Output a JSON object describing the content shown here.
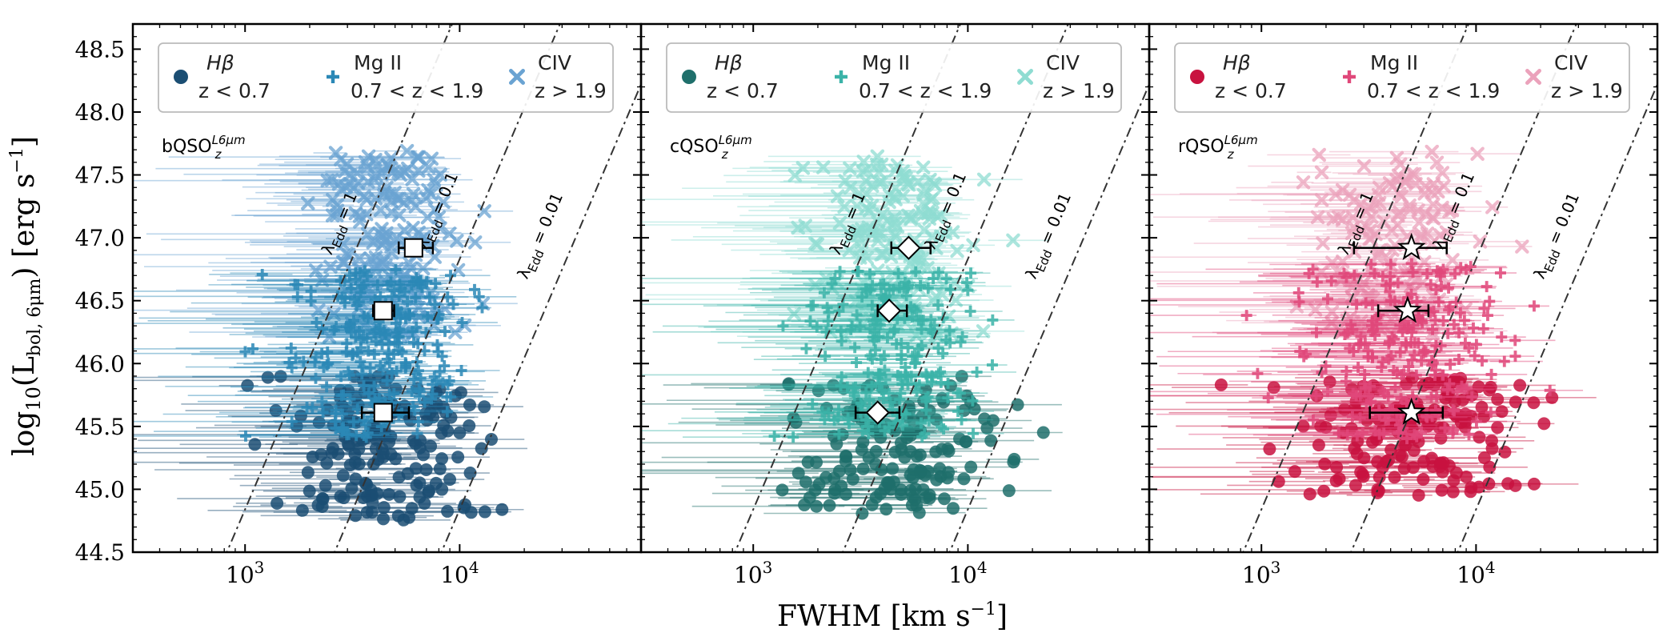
{
  "chart_data": [
    {
      "type": "scatter",
      "panel_label": "bQSO",
      "panel_label_sub": "z",
      "panel_label_sup": "L6μm",
      "colors": {
        "Hbeta": "#1b4e73",
        "MgII": "#2b88b6",
        "CIV": "#6aa3d2",
        "median": "#ffffff"
      },
      "median_marker": "square",
      "legend": [
        {
          "name": "Hβ",
          "range": "z < 0.7",
          "marker": "circle"
        },
        {
          "name": "Mg II",
          "range": "0.7 < z < 1.9",
          "marker": "plus"
        },
        {
          "name": "CIV",
          "range": "z > 1.9",
          "marker": "x"
        }
      ],
      "medians": [
        {
          "fwhm": 4400,
          "lbol": 45.61,
          "err_lo": 900,
          "err_hi": 1400
        },
        {
          "fwhm": 4400,
          "lbol": 46.42,
          "err_lo": 450,
          "err_hi": 550
        },
        {
          "fwhm": 6100,
          "lbol": 46.92,
          "err_lo": 900,
          "err_hi": 1400
        }
      ],
      "clouds": [
        {
          "group": "Hbeta",
          "fwhm_center": 4300,
          "fwhm_spread": 0.23,
          "l_min": 44.75,
          "l_max": 45.9,
          "count": 170
        },
        {
          "group": "MgII",
          "fwhm_center": 4300,
          "fwhm_spread": 0.2,
          "l_min": 45.4,
          "l_max": 46.75,
          "count": 240
        },
        {
          "group": "CIV",
          "fwhm_center": 4700,
          "fwhm_spread": 0.16,
          "l_min": 46.2,
          "l_max": 47.7,
          "count": 200
        }
      ]
    },
    {
      "type": "scatter",
      "panel_label": "cQSO",
      "panel_label_sub": "z",
      "panel_label_sup": "L6μm",
      "colors": {
        "Hbeta": "#1f6f6b",
        "MgII": "#3bb3a8",
        "CIV": "#8fdcd2",
        "median": "#ffffff"
      },
      "median_marker": "diamond",
      "legend": [
        {
          "name": "Hβ",
          "range": "z < 0.7",
          "marker": "circle"
        },
        {
          "name": "Mg II",
          "range": "0.7 < z < 1.9",
          "marker": "plus"
        },
        {
          "name": "CIV",
          "range": "z > 1.9",
          "marker": "x"
        }
      ],
      "medians": [
        {
          "fwhm": 3800,
          "lbol": 45.61,
          "err_lo": 800,
          "err_hi": 1000
        },
        {
          "fwhm": 4300,
          "lbol": 46.42,
          "err_lo": 500,
          "err_hi": 900
        },
        {
          "fwhm": 5300,
          "lbol": 46.92,
          "err_lo": 900,
          "err_hi": 1400
        }
      ],
      "clouds": [
        {
          "group": "Hbeta",
          "fwhm_center": 4300,
          "fwhm_spread": 0.25,
          "l_min": 44.8,
          "l_max": 45.9,
          "count": 150
        },
        {
          "group": "MgII",
          "fwhm_center": 4200,
          "fwhm_spread": 0.2,
          "l_min": 45.4,
          "l_max": 46.75,
          "count": 220
        },
        {
          "group": "CIV",
          "fwhm_center": 4500,
          "fwhm_spread": 0.17,
          "l_min": 46.2,
          "l_max": 47.65,
          "count": 190
        }
      ]
    },
    {
      "type": "scatter",
      "panel_label": "rQSO",
      "panel_label_sub": "z",
      "panel_label_sup": "L6μm",
      "colors": {
        "Hbeta": "#c8123f",
        "MgII": "#e0487a",
        "CIV": "#eba2bb",
        "median": "#ffffff"
      },
      "median_marker": "star",
      "legend": [
        {
          "name": "Hβ",
          "range": "z < 0.7",
          "marker": "circle"
        },
        {
          "name": "Mg II",
          "range": "0.7 < z < 1.9",
          "marker": "plus"
        },
        {
          "name": "CIV",
          "range": "z > 1.9",
          "marker": "x"
        }
      ],
      "medians": [
        {
          "fwhm": 5000,
          "lbol": 45.61,
          "err_lo": 1800,
          "err_hi": 2000
        },
        {
          "fwhm": 4800,
          "lbol": 46.42,
          "err_lo": 1300,
          "err_hi": 1200
        },
        {
          "fwhm": 5000,
          "lbol": 46.92,
          "err_lo": 2300,
          "err_hi": 2300
        }
      ],
      "clouds": [
        {
          "group": "Hbeta",
          "fwhm_center": 5000,
          "fwhm_spread": 0.25,
          "l_min": 44.95,
          "l_max": 45.9,
          "count": 170
        },
        {
          "group": "MgII",
          "fwhm_center": 4500,
          "fwhm_spread": 0.22,
          "l_min": 45.4,
          "l_max": 46.8,
          "count": 230
        },
        {
          "group": "CIV",
          "fwhm_center": 4200,
          "fwhm_spread": 0.22,
          "l_min": 46.2,
          "l_max": 47.7,
          "count": 160
        }
      ]
    }
  ],
  "axes": {
    "xlabel": "FWHM [km s",
    "xlabel_sup": "−1",
    "xlabel_end": "]",
    "ylabel_main": "log",
    "ylabel_sub10": "10",
    "ylabel_paren": "(L",
    "ylabel_sub": "bol, 6μm",
    "ylabel_rest": ") [erg s",
    "ylabel_sup": "−1",
    "ylabel_end": "]",
    "xscale": "log",
    "xlim": [
      300,
      70000
    ],
    "ylim": [
      44.5,
      48.7
    ],
    "x_ticks": [
      1000,
      10000
    ],
    "x_tick_labels": [
      "10",
      "10"
    ],
    "x_tick_sups": [
      "3",
      "4"
    ],
    "y_ticks": [
      44.5,
      45.0,
      45.5,
      46.0,
      46.5,
      47.0,
      47.5,
      48.0,
      48.5
    ],
    "y_tick_labels": [
      "44.5",
      "45.0",
      "45.5",
      "46.0",
      "46.5",
      "47.0",
      "47.5",
      "48.0",
      "48.5"
    ],
    "legend_placement": "top"
  },
  "eddington_lines": [
    {
      "label": "λ",
      "sub": "Edd",
      "value": " = 1",
      "fwhm_at_46": 1950,
      "label_fwhm": 2900,
      "label_lbol": 47.1
    },
    {
      "label": "λ",
      "sub": "Edd",
      "value": " = 0.1",
      "fwhm_at_46": 6200,
      "label_fwhm": 8300,
      "label_lbol": 47.2
    },
    {
      "label": "λ",
      "sub": "Edd",
      "value": " = 0.01",
      "fwhm_at_46": 19500,
      "label_fwhm": 25000,
      "label_lbol": 47.0
    }
  ]
}
